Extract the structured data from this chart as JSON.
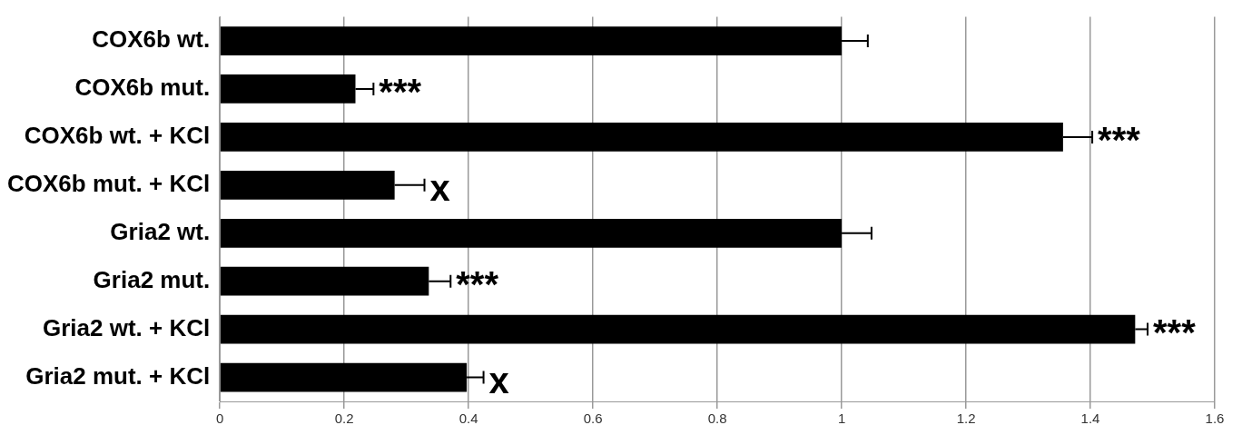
{
  "chart_data": {
    "type": "bar",
    "orientation": "horizontal",
    "categories": [
      "COX6b wt.",
      "COX6b mut.",
      "COX6b wt. + KCl",
      "COX6b mut. + KCl",
      "Gria2 wt.",
      "Gria2 mut.",
      "Gria2 wt. + KCl",
      "Gria2 mut. + KCl"
    ],
    "values": [
      1,
      0.218,
      1.356,
      0.281,
      1,
      0.336,
      1.472,
      0.397
    ],
    "errors": [
      [
        1,
        1.042
      ],
      [
        0.218,
        0.247
      ],
      [
        1.356,
        1.403
      ],
      [
        0.281,
        0.329
      ],
      [
        1,
        1.048
      ],
      [
        0.336,
        0.371
      ],
      [
        1.472,
        1.492
      ],
      [
        0.397,
        0.424
      ]
    ],
    "color": "#000000",
    "xlim": [
      0,
      1.6
    ],
    "xticks": [
      0,
      0.2,
      0.4,
      0.6,
      0.8,
      1,
      1.2,
      1.4,
      1.6
    ],
    "grid": "x",
    "legend": false,
    "annotations": [
      {
        "text": "***",
        "x": 0.247,
        "y": "COX6b mut."
      },
      {
        "text": "***",
        "x": 1.403,
        "y": "COX6b wt. + KCl"
      },
      {
        "text": "x",
        "x": 0.329,
        "y": "COX6b mut. + KCl"
      },
      {
        "text": "***",
        "x": 0.371,
        "y": "Gria2 mut."
      },
      {
        "text": "***",
        "x": 1.492,
        "y": "Gria2 wt. + KCl"
      },
      {
        "text": "x",
        "x": 0.424,
        "y": "Gria2 mut. + KCl"
      }
    ]
  }
}
